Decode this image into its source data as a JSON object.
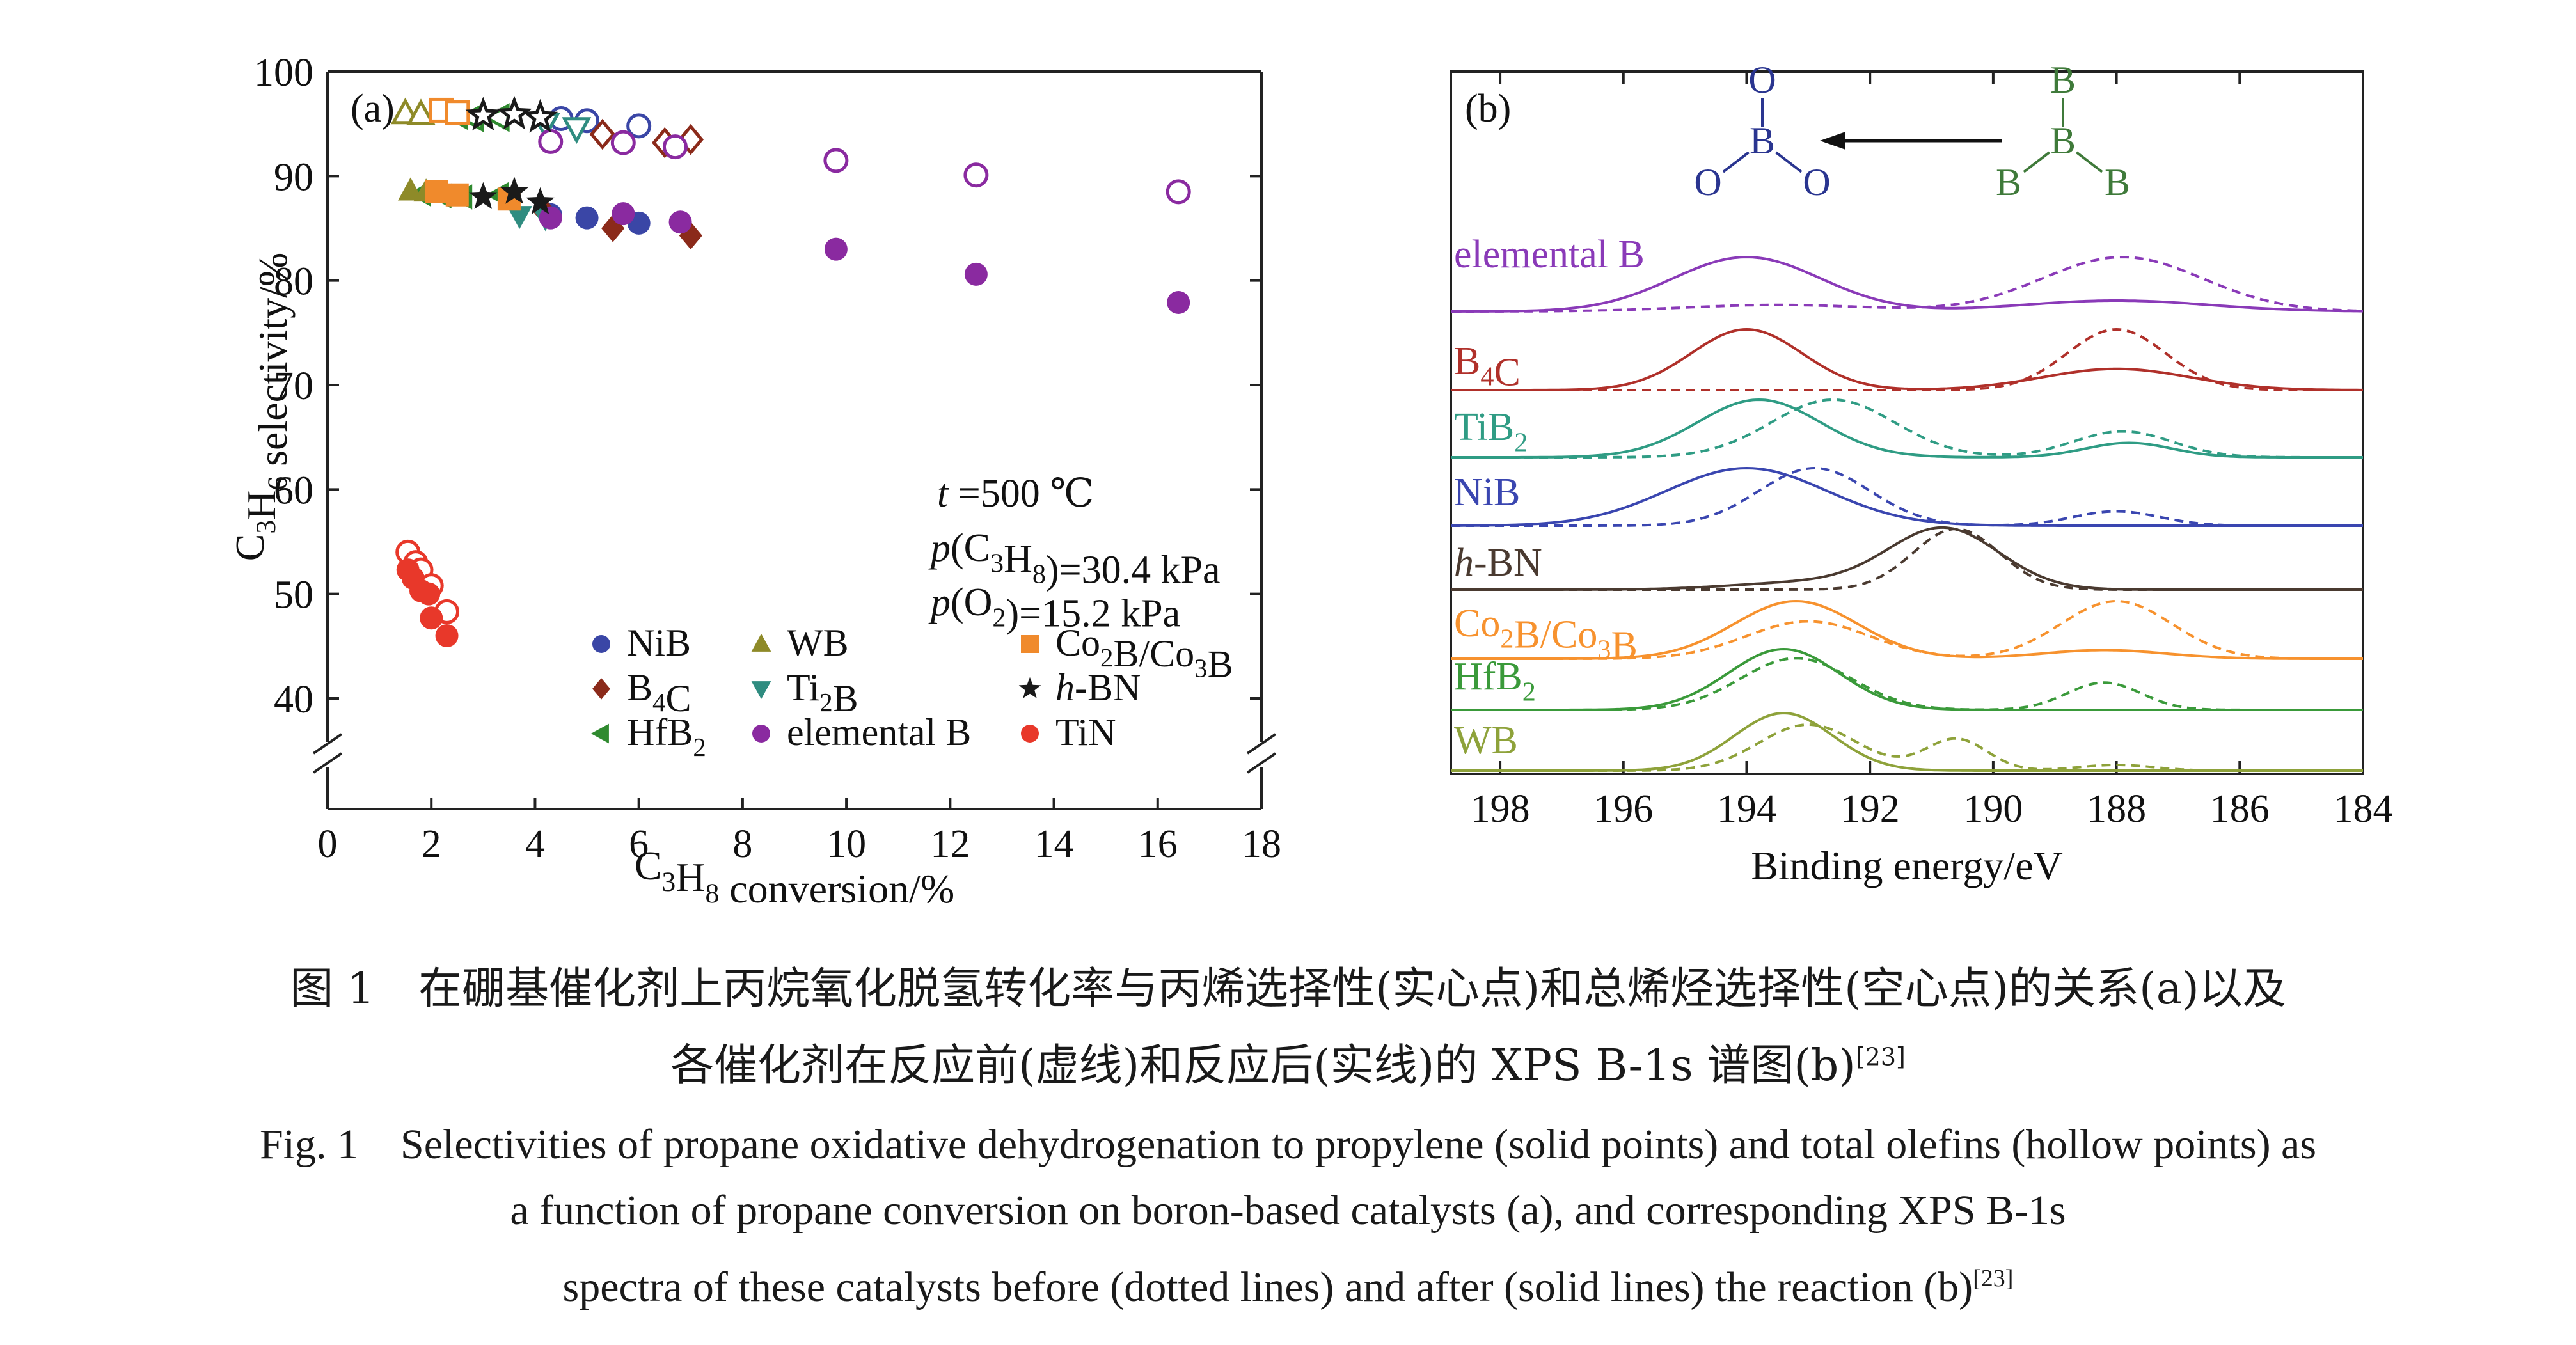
{
  "chart_data": [
    {
      "type": "scatter",
      "panel_label": "(a)",
      "xlabel": "C3H8 conversion/%",
      "ylabel": "C3H6 selectivity/%",
      "xlim": [
        0,
        18
      ],
      "ylim_upper": [
        40,
        100
      ],
      "ylim_lower_break": "broken axis between 0 and 40",
      "xticks": [
        "0",
        "2",
        "4",
        "6",
        "8",
        "10",
        "12",
        "14",
        "16",
        "18"
      ],
      "yticks": [
        "40",
        "50",
        "60",
        "70",
        "80",
        "90",
        "100"
      ],
      "grid": false,
      "legend_position": "bottom, inside plot (3 columns)",
      "conditions": [
        "t =500 ℃",
        "p(C3H8)=30.4 kPa",
        "p(O2)=15.2 kPa"
      ],
      "series": [
        {
          "name": "NiB",
          "marker": "circle",
          "color": "#3a46a6",
          "solid": [
            [
              4.3,
              86.3
            ],
            [
              5.0,
              86.0
            ],
            [
              6.0,
              85.5
            ]
          ],
          "hollow": [
            [
              4.5,
              95.5
            ],
            [
              5.0,
              95.3
            ],
            [
              6.0,
              94.8
            ]
          ]
        },
        {
          "name": "B4C",
          "marker": "diamond",
          "color": "#8b2a1a",
          "solid": [
            [
              4.2,
              86.5
            ],
            [
              5.5,
              85.0
            ],
            [
              7.0,
              84.3
            ]
          ],
          "hollow": [
            [
              5.3,
              94.0
            ],
            [
              6.5,
              93.2
            ],
            [
              7.0,
              93.5
            ]
          ]
        },
        {
          "name": "HfB2",
          "marker": "triangle-left",
          "color": "#2f8a2f",
          "solid": [
            [
              1.8,
              88.3
            ],
            [
              2.2,
              88.1
            ],
            [
              2.6,
              88.0
            ],
            [
              3.3,
              88.2
            ]
          ],
          "hollow": [
            [
              2.5,
              95.8
            ],
            [
              2.8,
              95.6
            ],
            [
              3.3,
              95.6
            ]
          ]
        },
        {
          "name": "WB",
          "marker": "triangle-up",
          "color": "#8e8a28",
          "solid": [
            [
              1.6,
              88.6
            ],
            [
              1.9,
              88.5
            ]
          ],
          "hollow": [
            [
              1.5,
              96.0
            ],
            [
              1.8,
              95.9
            ]
          ]
        },
        {
          "name": "Ti2B",
          "marker": "triangle-down",
          "color": "#2f8c80",
          "solid": [
            [
              3.7,
              86.2
            ],
            [
              4.2,
              86.0
            ]
          ],
          "hollow": [
            [
              4.2,
              95.0
            ],
            [
              4.8,
              94.6
            ]
          ]
        },
        {
          "name": "elemental B",
          "marker": "circle",
          "color": "#8a2aa0",
          "solid": [
            [
              4.3,
              86.0
            ],
            [
              5.7,
              86.4
            ],
            [
              6.8,
              85.6
            ],
            [
              9.8,
              83.0
            ],
            [
              12.5,
              80.6
            ],
            [
              16.4,
              77.9
            ]
          ],
          "hollow": [
            [
              4.3,
              93.3
            ],
            [
              5.7,
              93.2
            ],
            [
              6.7,
              92.8
            ],
            [
              9.8,
              91.5
            ],
            [
              12.5,
              90.1
            ],
            [
              16.4,
              88.5
            ]
          ]
        },
        {
          "name": "Co2B/Co3B",
          "marker": "square",
          "color": "#f08a2c",
          "solid": [
            [
              2.1,
              88.5
            ],
            [
              2.5,
              88.2
            ],
            [
              3.5,
              87.8
            ]
          ],
          "hollow": [
            [
              2.2,
              96.3
            ],
            [
              2.5,
              96.1
            ]
          ]
        },
        {
          "name": "h-BN",
          "marker": "star",
          "color": "#1a1a1a",
          "solid": [
            [
              3.0,
              88.0
            ],
            [
              3.6,
              88.5
            ],
            [
              4.1,
              87.5
            ]
          ],
          "hollow": [
            [
              3.0,
              95.8
            ],
            [
              3.6,
              95.9
            ],
            [
              4.1,
              95.6
            ]
          ]
        },
        {
          "name": "TiN",
          "marker": "circle",
          "color": "#e8382a",
          "solid": [
            [
              1.55,
              52.3
            ],
            [
              1.65,
              51.5
            ],
            [
              1.8,
              50.3
            ],
            [
              1.95,
              50.0
            ],
            [
              2.0,
              47.7
            ],
            [
              2.3,
              46.0
            ]
          ],
          "hollow": [
            [
              1.55,
              54.0
            ],
            [
              1.7,
              53.0
            ],
            [
              1.8,
              52.3
            ],
            [
              2.0,
              50.8
            ],
            [
              2.3,
              48.3
            ]
          ]
        }
      ]
    },
    {
      "type": "line",
      "panel_label": "(b)",
      "xlabel": "Binding energy/eV",
      "xlim": [
        198.8,
        184
      ],
      "x_reversed": true,
      "xticks": [
        "198",
        "196",
        "194",
        "192",
        "190",
        "188",
        "186",
        "184"
      ],
      "legend": "solid = after reaction, dotted = before reaction",
      "structure_labels": {
        "left_center": "B",
        "left_subs": [
          "O",
          "O",
          "O"
        ],
        "right_center": "B",
        "right_subs": [
          "B",
          "B",
          "B"
        ]
      },
      "spectra": [
        {
          "name": "elemental B",
          "color": "#8a3ab8",
          "after_peaks": [
            [
              194.0,
              1.0,
              1.2
            ],
            [
              188.0,
              0.2,
              1.5
            ]
          ],
          "before_peaks": [
            [
              193.5,
              0.12,
              1.5
            ],
            [
              187.9,
              1.0,
              1.3
            ]
          ]
        },
        {
          "name": "B4C",
          "color": "#b0302a",
          "after_peaks": [
            [
              194.0,
              1.0,
              0.9
            ],
            [
              188.0,
              0.35,
              1.2
            ]
          ],
          "before_peaks": [
            [
              188.0,
              1.0,
              0.8
            ]
          ]
        },
        {
          "name": "TiB2",
          "color": "#2f9c84",
          "after_peaks": [
            [
              193.8,
              1.0,
              1.0
            ],
            [
              187.8,
              0.25,
              0.7
            ]
          ],
          "before_peaks": [
            [
              192.6,
              1.0,
              1.0
            ],
            [
              187.9,
              0.45,
              0.8
            ]
          ]
        },
        {
          "name": "NiB",
          "color": "#3a46b0",
          "after_peaks": [
            [
              194.0,
              1.0,
              1.3
            ]
          ],
          "before_peaks": [
            [
              192.9,
              1.0,
              0.9
            ],
            [
              188.0,
              0.25,
              0.7
            ]
          ]
        },
        {
          "name": "h-BN",
          "color": "#4a3a30",
          "after_peaks": [
            [
              190.8,
              1.0,
              0.9
            ],
            [
              193.0,
              0.12,
              1.2
            ]
          ],
          "before_peaks": [
            [
              190.6,
              1.0,
              0.7
            ]
          ]
        },
        {
          "name": "Co2B/Co3B",
          "color": "#f7922e",
          "after_peaks": [
            [
              193.2,
              1.0,
              1.0
            ],
            [
              188.2,
              0.15,
              1.0
            ]
          ],
          "before_peaks": [
            [
              193.0,
              0.65,
              1.0
            ],
            [
              188.0,
              1.0,
              0.9
            ]
          ]
        },
        {
          "name": "HfB2",
          "color": "#3a9a3a",
          "after_peaks": [
            [
              193.4,
              1.0,
              0.9
            ]
          ],
          "before_peaks": [
            [
              193.2,
              0.85,
              0.9
            ],
            [
              188.2,
              0.45,
              0.6
            ]
          ]
        },
        {
          "name": "WB",
          "color": "#8ea23a",
          "after_peaks": [
            [
              193.4,
              1.0,
              0.8
            ]
          ],
          "before_peaks": [
            [
              193.0,
              0.8,
              0.8
            ],
            [
              190.6,
              0.55,
              0.5
            ],
            [
              188.0,
              0.1,
              0.6
            ]
          ]
        }
      ]
    }
  ],
  "caption": {
    "zh_line1": "图 1　在硼基催化剂上丙烷氧化脱氢转化率与丙烯选择性(实心点)和总烯烃选择性(空心点)的关系(a)以及",
    "zh_line2": "各催化剂在反应前(虚线)和反应后(实线)的 XPS B-1s 谱图(b)",
    "zh_ref": "[23]",
    "en_line1": "Fig. 1　Selectivities of propane oxidative dehydrogenation to propylene (solid points) and total olefins (hollow points) as",
    "en_line2": "a function of propane conversion on boron-based catalysts (a), and corresponding XPS B-1s",
    "en_line3": "spectra of these catalysts before (dotted lines) and after (solid lines) the reaction (b)",
    "en_ref": "[23]"
  }
}
